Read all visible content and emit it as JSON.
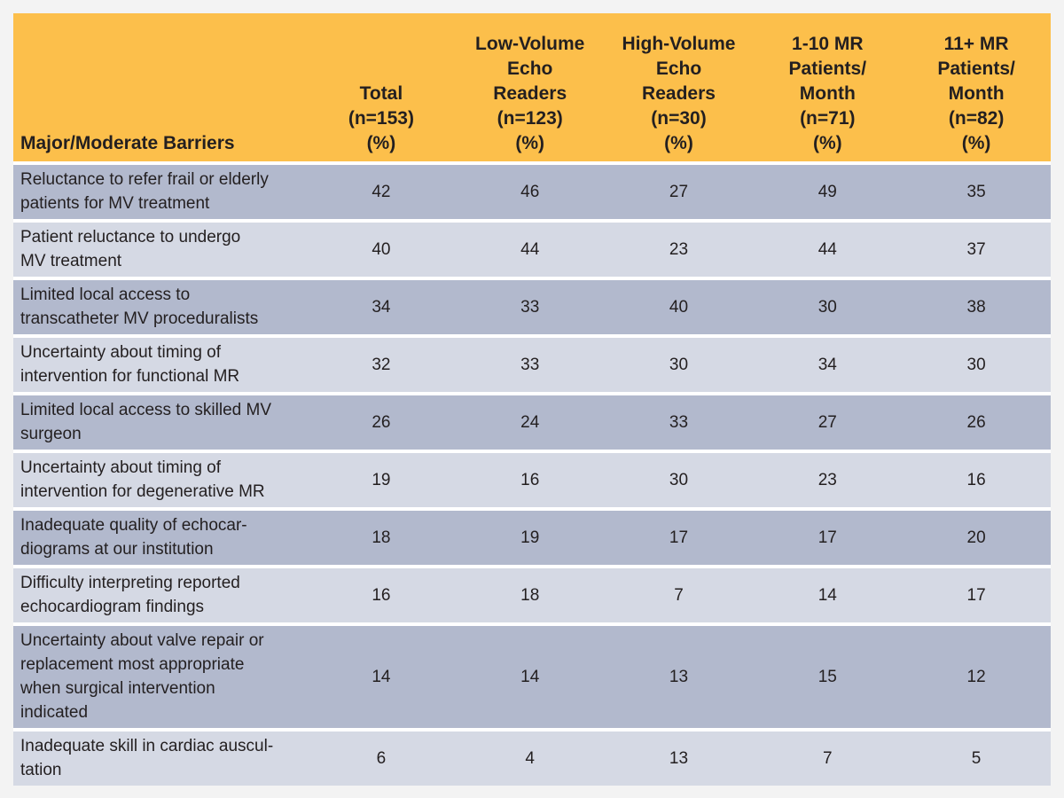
{
  "table": {
    "header": {
      "label": "Major/Moderate Barriers",
      "columns": [
        [
          "Total",
          "(n=153)",
          "(%)"
        ],
        [
          "Low-Volume",
          "Echo",
          "Readers",
          "(n=123)",
          "(%)"
        ],
        [
          "High-Volume",
          "Echo",
          "Readers",
          "(n=30)",
          "(%)"
        ],
        [
          "1-10 MR",
          "Patients/",
          "Month",
          "(n=71)",
          "(%)"
        ],
        [
          "11+ MR",
          "Patients/",
          "Month",
          "(n=82)",
          "(%)"
        ]
      ]
    },
    "rows": [
      {
        "label": [
          "Reluctance to refer frail or elderly",
          "patients for MV treatment"
        ],
        "values": [
          "42",
          "46",
          "27",
          "49",
          "35"
        ]
      },
      {
        "label": [
          "Patient reluctance to undergo",
          "MV treatment"
        ],
        "values": [
          "40",
          "44",
          "23",
          "44",
          "37"
        ]
      },
      {
        "label": [
          "Limited local access to",
          "transcatheter MV proceduralists"
        ],
        "values": [
          "34",
          "33",
          "40",
          "30",
          "38"
        ]
      },
      {
        "label": [
          "Uncertainty about timing of",
          "intervention for functional MR"
        ],
        "values": [
          "32",
          "33",
          "30",
          "34",
          "30"
        ]
      },
      {
        "label": [
          "Limited local access to skilled MV",
          "surgeon"
        ],
        "values": [
          "26",
          "24",
          "33",
          "27",
          "26"
        ]
      },
      {
        "label": [
          "Uncertainty about timing of",
          "intervention for degenerative MR"
        ],
        "values": [
          "19",
          "16",
          "30",
          "23",
          "16"
        ]
      },
      {
        "label": [
          "Inadequate quality of echocar-",
          "diograms at our institution"
        ],
        "values": [
          "18",
          "19",
          "17",
          "17",
          "20"
        ]
      },
      {
        "label": [
          "Difficulty interpreting reported",
          "echocardiogram findings"
        ],
        "values": [
          "16",
          "18",
          "7",
          "14",
          "17"
        ]
      },
      {
        "label": [
          "Uncertainty about valve repair or",
          "replacement most appropriate",
          "when surgical intervention",
          "indicated"
        ],
        "values": [
          "14",
          "14",
          "13",
          "15",
          "12"
        ]
      },
      {
        "label": [
          "Inadequate skill in cardiac auscul-",
          "tation"
        ],
        "values": [
          "6",
          "4",
          "13",
          "7",
          "5"
        ]
      }
    ]
  },
  "colors": {
    "header": "#fcbf4b",
    "row_dark": "#b2b9cd",
    "row_light": "#d5d9e4"
  }
}
